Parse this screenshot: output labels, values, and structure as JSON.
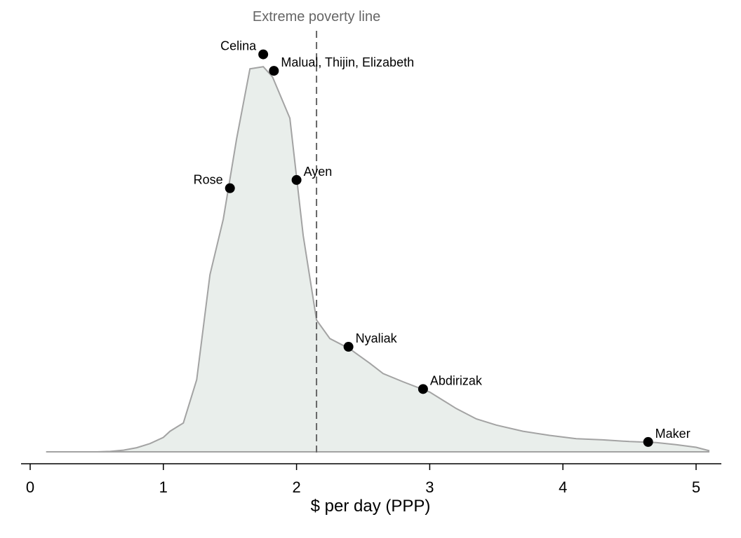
{
  "chart_data": {
    "type": "area",
    "xlabel": "$ per day (PPP)",
    "ylabel": "",
    "xlim": [
      0,
      5.1
    ],
    "ylim": [
      0,
      1.9
    ],
    "xticks": [
      0,
      1,
      2,
      3,
      4,
      5
    ],
    "grid": false,
    "legend": "none",
    "colors": {
      "fill": "#e9eeeb",
      "line": "#a3a3a3",
      "marker": "#000000",
      "vline": "#666666",
      "vline_label": "#666666"
    },
    "density": {
      "x": [
        0.12,
        0.3,
        0.5,
        0.6,
        0.7,
        0.8,
        0.9,
        1.0,
        1.05,
        1.15,
        1.25,
        1.35,
        1.45,
        1.55,
        1.65,
        1.75,
        1.82,
        1.95,
        2.05,
        2.15,
        2.25,
        2.4,
        2.55,
        2.65,
        2.8,
        3.0,
        3.1,
        3.2,
        3.35,
        3.5,
        3.7,
        3.9,
        4.1,
        4.3,
        4.5,
        4.7,
        4.85,
        5.0,
        5.1
      ],
      "y": [
        0.0,
        0.0,
        0.0,
        0.002,
        0.008,
        0.02,
        0.04,
        0.07,
        0.1,
        0.14,
        0.35,
        0.86,
        1.13,
        1.52,
        1.86,
        1.87,
        1.82,
        1.62,
        1.05,
        0.64,
        0.55,
        0.5,
        0.43,
        0.38,
        0.34,
        0.29,
        0.25,
        0.21,
        0.16,
        0.13,
        0.1,
        0.08,
        0.064,
        0.058,
        0.05,
        0.045,
        0.035,
        0.022,
        0.005
      ]
    },
    "vline": {
      "x": 2.15,
      "label": "Extreme poverty line"
    },
    "points": [
      {
        "name": "Celina",
        "x": 1.75,
        "y": 1.93,
        "label_side": "left"
      },
      {
        "name": "Malual, Thijin, Elizabeth",
        "x": 1.83,
        "y": 1.85,
        "label_side": "right"
      },
      {
        "name": "Rose",
        "x": 1.5,
        "y": 1.28,
        "label_side": "left"
      },
      {
        "name": "Ayen",
        "x": 2.0,
        "y": 1.32,
        "label_side": "right"
      },
      {
        "name": "Nyaliak",
        "x": 2.39,
        "y": 0.51,
        "label_side": "right"
      },
      {
        "name": "Abdirizak",
        "x": 2.95,
        "y": 0.305,
        "label_side": "right"
      },
      {
        "name": "Maker",
        "x": 4.64,
        "y": 0.048,
        "label_side": "right"
      }
    ]
  }
}
